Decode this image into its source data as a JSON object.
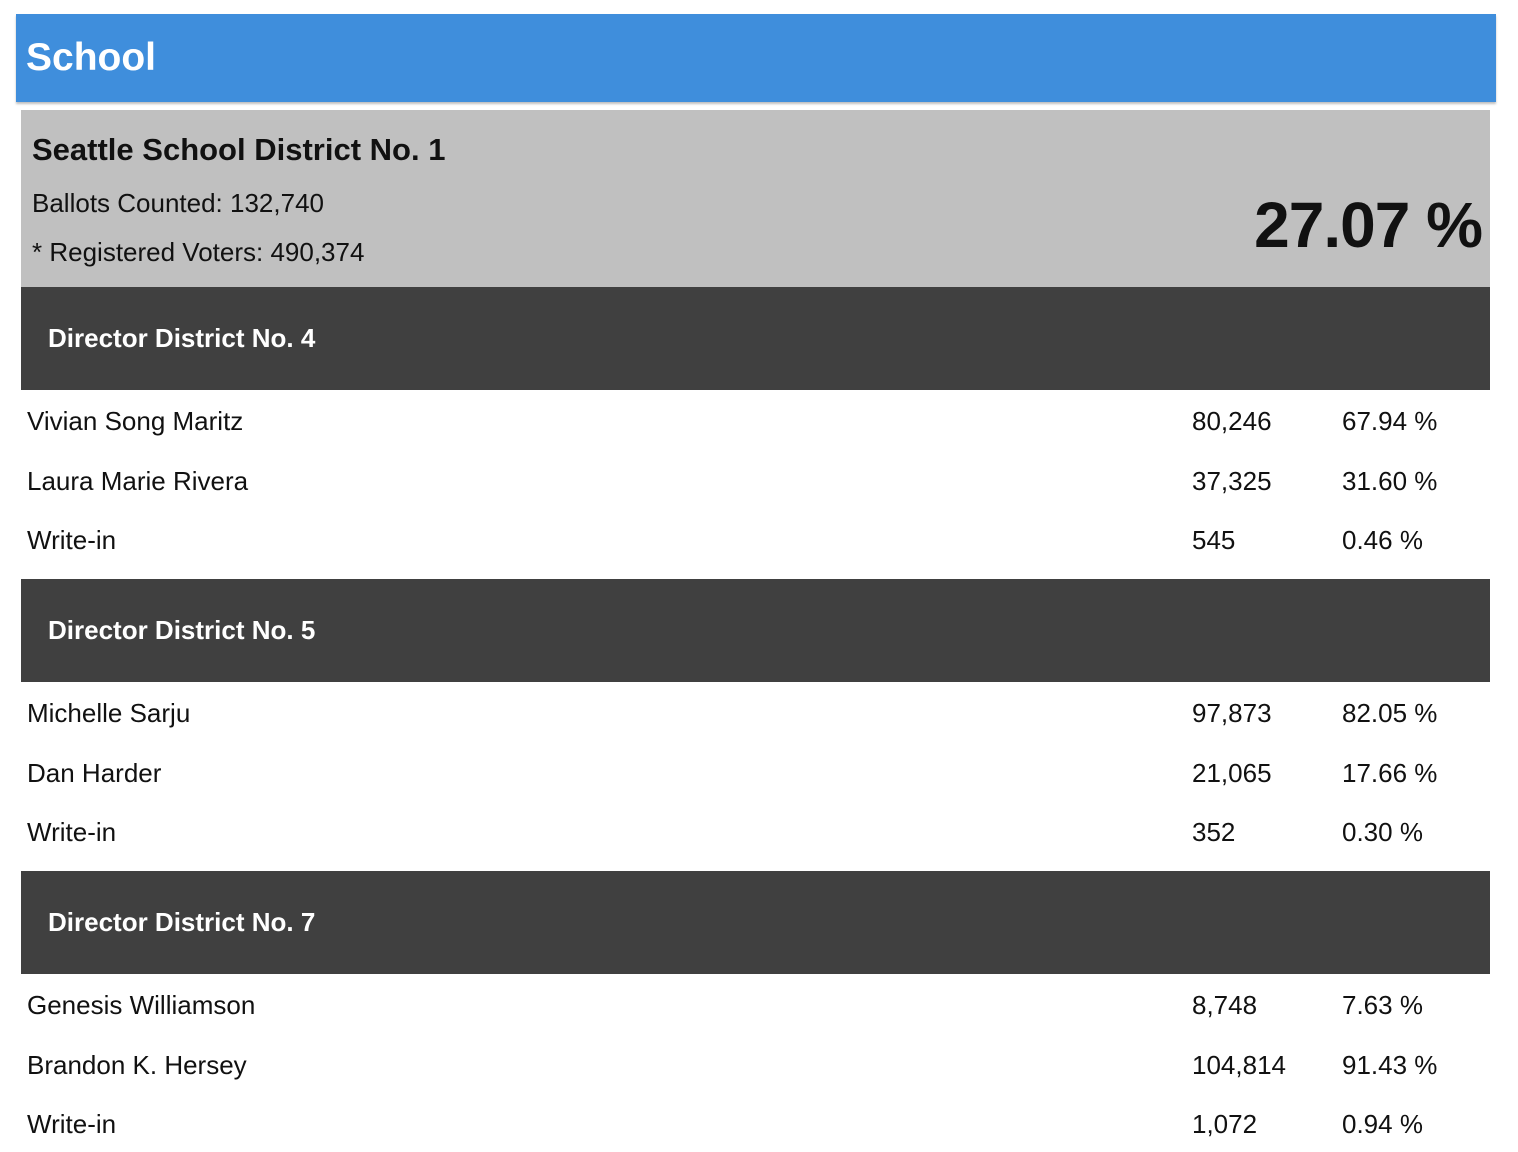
{
  "header": {
    "title": "School"
  },
  "district": {
    "name": "Seattle School District No. 1",
    "ballots_counted": "Ballots Counted: 132,740",
    "registered_voters": "* Registered Voters: 490,374",
    "turnout": "27.07 %"
  },
  "races": [
    {
      "title": "Director District No. 4",
      "candidates": [
        {
          "name": "Vivian Song Maritz",
          "votes": "80,246",
          "pct": "67.94 %"
        },
        {
          "name": "Laura Marie Rivera",
          "votes": "37,325",
          "pct": "31.60 %"
        },
        {
          "name": "Write-in",
          "votes": "545",
          "pct": "0.46 %"
        }
      ]
    },
    {
      "title": "Director District No. 5",
      "candidates": [
        {
          "name": "Michelle Sarju",
          "votes": "97,873",
          "pct": "82.05 %"
        },
        {
          "name": "Dan Harder",
          "votes": "21,065",
          "pct": "17.66 %"
        },
        {
          "name": "Write-in",
          "votes": "352",
          "pct": "0.30 %"
        }
      ]
    },
    {
      "title": "Director District No. 7",
      "candidates": [
        {
          "name": "Genesis Williamson",
          "votes": "8,748",
          "pct": "7.63 %"
        },
        {
          "name": "Brandon K. Hersey",
          "votes": "104,814",
          "pct": "91.43 %"
        },
        {
          "name": "Write-in",
          "votes": "1,072",
          "pct": "0.94 %"
        }
      ]
    }
  ]
}
